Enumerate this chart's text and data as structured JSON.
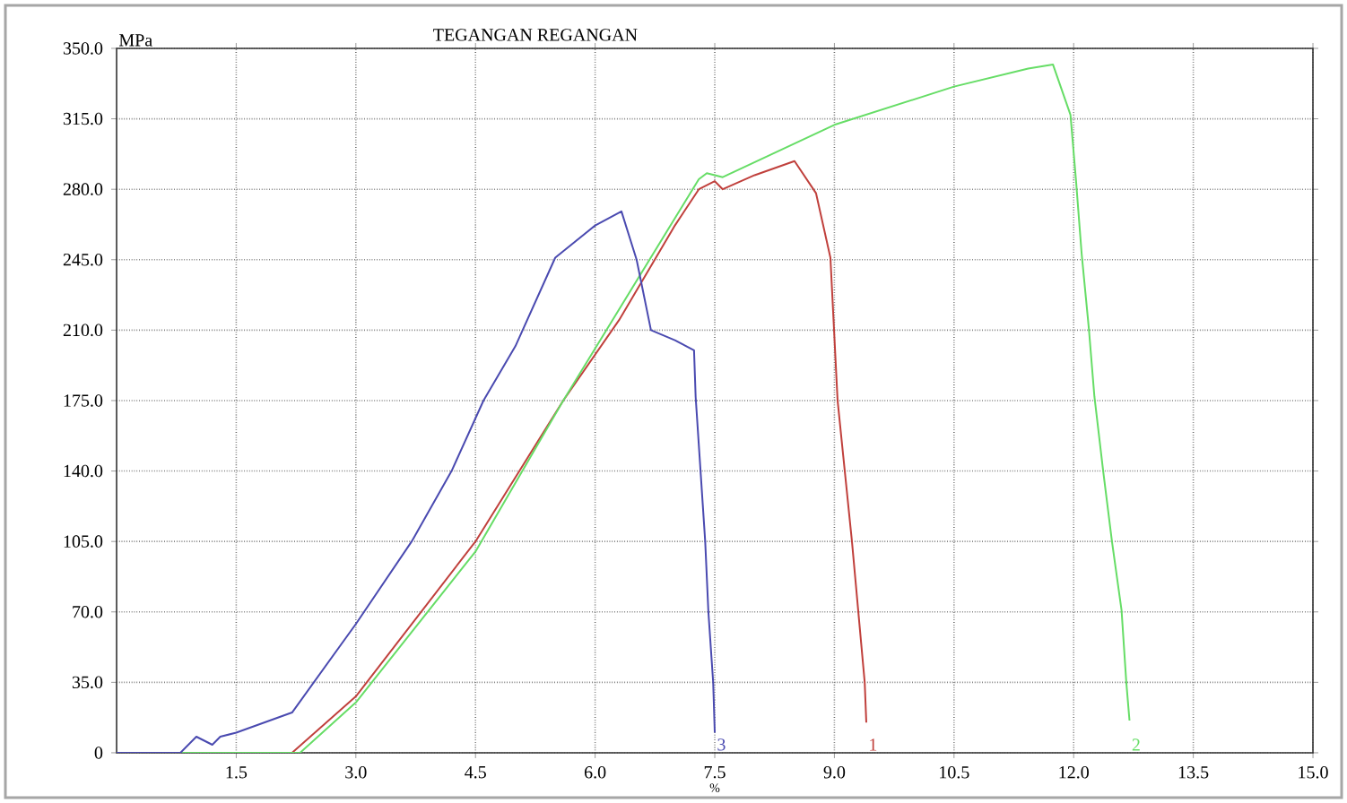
{
  "chart_data": {
    "type": "line",
    "title": "TEGANGAN REGANGAN",
    "xlabel": "%",
    "ylabel": "MPa",
    "xlim": [
      0,
      15
    ],
    "ylim": [
      0,
      350
    ],
    "xticks": [
      {
        "value": 1.5,
        "label": "1.5"
      },
      {
        "value": 3,
        "label": "3.0"
      },
      {
        "value": 4.5,
        "label": "4.5"
      },
      {
        "value": 6,
        "label": "6.0"
      },
      {
        "value": 7.5,
        "label": "7.5"
      },
      {
        "value": 9,
        "label": "9.0"
      },
      {
        "value": 10.5,
        "label": "10.5"
      },
      {
        "value": 12,
        "label": "12.0"
      },
      {
        "value": 13.5,
        "label": "13.5"
      },
      {
        "value": 15,
        "label": "15.0"
      }
    ],
    "yticks": [
      0,
      {
        "value": 35,
        "label": "35.0"
      },
      {
        "value": 70,
        "label": "70.0"
      },
      {
        "value": 105,
        "label": "105.0"
      },
      {
        "value": 140,
        "label": "140.0"
      },
      {
        "value": 175,
        "label": "175.0"
      },
      {
        "value": 210,
        "label": "210.0"
      },
      {
        "value": 245,
        "label": "245.0"
      },
      {
        "value": 280,
        "label": "280.0"
      },
      {
        "value": 315,
        "label": "315.0"
      },
      {
        "value": 350,
        "label": "350.0"
      }
    ],
    "grid": true,
    "marker": "none",
    "line_style": "solid",
    "series": [
      {
        "name": "1",
        "color": "#c0403c",
        "x": [
          0,
          2.2,
          3.0,
          4.5,
          5.6,
          6.3,
          7.0,
          7.3,
          7.5,
          7.6,
          8.0,
          8.5,
          8.77,
          8.95,
          9.04,
          9.22,
          9.38,
          9.4
        ],
        "values": [
          0,
          0,
          28,
          105,
          175,
          215,
          262,
          280,
          284,
          280,
          287,
          294,
          278,
          246,
          175,
          105,
          35,
          15
        ]
      },
      {
        "name": "2",
        "color": "#66dd66",
        "x": [
          0,
          2.3,
          3.0,
          4.5,
          5.6,
          7.3,
          7.4,
          7.6,
          9.0,
          10.5,
          11.43,
          11.74,
          11.96,
          12.03,
          12.1,
          12.19,
          12.26,
          12.37,
          12.48,
          12.6,
          12.66,
          12.7
        ],
        "values": [
          0,
          0,
          25,
          100,
          175,
          285,
          288,
          286,
          312,
          331,
          340,
          342,
          317,
          284,
          248,
          211,
          177,
          140,
          105,
          71,
          35,
          16
        ]
      },
      {
        "name": "3",
        "color": "#4a4ab0",
        "x": [
          0,
          0.8,
          1.0,
          1.2,
          1.3,
          1.5,
          2.2,
          3.0,
          3.7,
          4.2,
          4.6,
          5.0,
          5.5,
          6.0,
          6.33,
          6.52,
          6.7,
          7.0,
          7.24,
          7.26,
          7.38,
          7.42,
          7.48,
          7.5
        ],
        "values": [
          0,
          0,
          8,
          4,
          8,
          10,
          20,
          64,
          105,
          140,
          175,
          202,
          246,
          262,
          269,
          245,
          210,
          205,
          200,
          177,
          105,
          70,
          35,
          10
        ]
      }
    ]
  }
}
